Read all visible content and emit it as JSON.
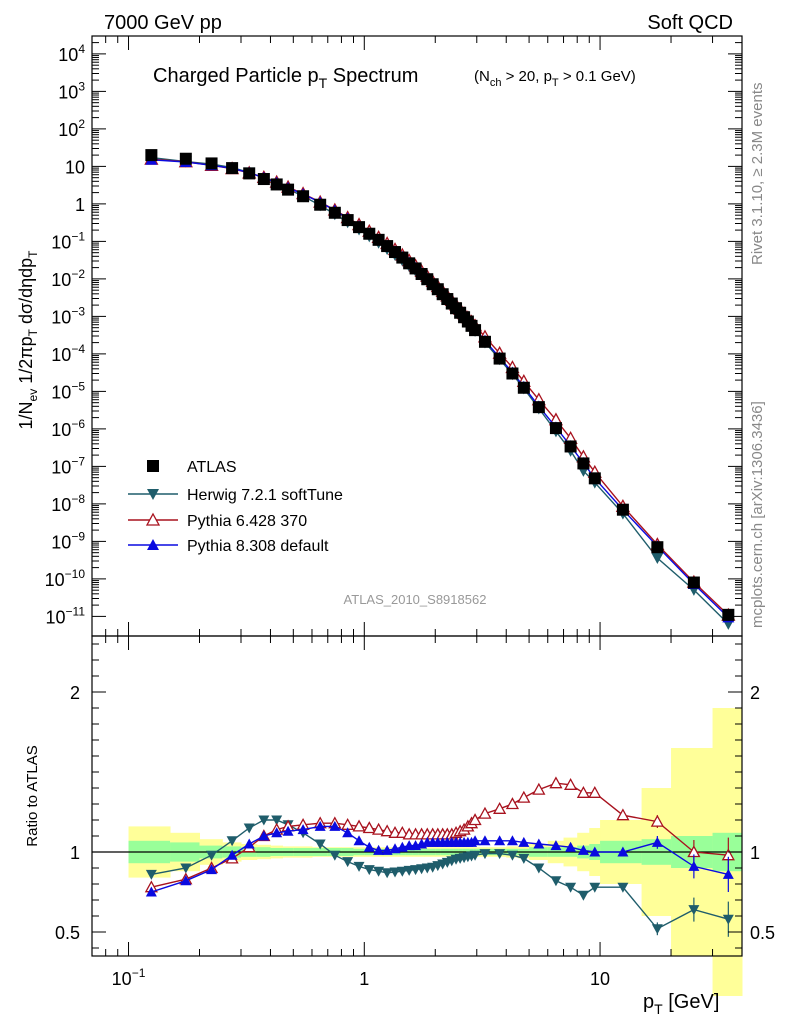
{
  "header": {
    "beam": "7000 GeV pp",
    "process": "Soft QCD",
    "analysis": "ATLAS_2010_S8918562",
    "side_top": "Rivet 3.1.10, ≥ 2.3M events",
    "side_bottom": "mcplots.cern.ch [arXiv:1306.3436]"
  },
  "chart_data": [
    {
      "type": "line",
      "title": "Charged Particle pT Spectrum",
      "subtitle": "(Nch > 20, pT > 0.1 GeV)",
      "ylabel": "1/Nev 1/2πpT dσ/dηdpT",
      "xlabel": "pT [GeV]",
      "xscale": "log",
      "yscale": "log",
      "xlim": [
        0.07,
        40
      ],
      "ylim": [
        3e-12,
        30000.0
      ],
      "legend_position": "bottom-left",
      "x": [
        0.125,
        0.175,
        0.225,
        0.275,
        0.325,
        0.375,
        0.425,
        0.475,
        0.55,
        0.65,
        0.75,
        0.85,
        0.95,
        1.05,
        1.15,
        1.25,
        1.35,
        1.45,
        1.55,
        1.65,
        1.75,
        1.85,
        1.95,
        2.05,
        2.15,
        2.25,
        2.35,
        2.45,
        2.55,
        2.65,
        2.75,
        2.85,
        2.95,
        3.25,
        3.75,
        4.25,
        4.75,
        5.5,
        6.5,
        7.5,
        8.5,
        9.5,
        12.5,
        17.5,
        25.0,
        35.0
      ],
      "series": [
        {
          "name": "ATLAS",
          "color": "#000000",
          "marker": "square",
          "values": [
            20,
            16,
            12,
            9,
            6.5,
            4.6,
            3.3,
            2.4,
            1.6,
            0.95,
            0.58,
            0.37,
            0.24,
            0.16,
            0.11,
            0.075,
            0.052,
            0.037,
            0.026,
            0.019,
            0.0135,
            0.0098,
            0.0072,
            0.0053,
            0.0039,
            0.0029,
            0.0022,
            0.00165,
            0.00125,
            0.00095,
            0.00073,
            0.00056,
            0.00043,
            0.00021,
            7.5e-05,
            3e-05,
            1.25e-05,
            3.8e-06,
            1.05e-06,
            3.4e-07,
            1.2e-07,
            4.8e-08,
            7e-09,
            7e-10,
            8e-11,
            1.1e-11
          ]
        },
        {
          "name": "Herwig 7.2.1 softTune",
          "color": "#1f5d6b",
          "marker": "triangle-down",
          "values": [
            17.2,
            13.4,
            11.5,
            9.3,
            6.9,
            4.9,
            3.5,
            2.5,
            1.6,
            0.92,
            0.53,
            0.325,
            0.207,
            0.136,
            0.092,
            0.062,
            0.0432,
            0.0308,
            0.0218,
            0.0161,
            0.0116,
            0.0085,
            0.0063,
            0.0047,
            0.00348,
            0.00261,
            0.00199,
            0.00151,
            0.00116,
            0.00089,
            0.00069,
            0.00053,
            0.000411,
            0.000202,
            7.2e-05,
            2.87e-05,
            1.2e-05,
            3.5e-06,
            8.6e-07,
            2.6e-07,
            7.6e-08,
            3.7e-08,
            5.5e-09,
            3.6e-10,
            5.1e-11,
            6.3e-12
          ]
        },
        {
          "name": "Pythia 6.428 370",
          "color": "#a8121e",
          "marker": "triangle-open",
          "values": [
            15.6,
            13.3,
            10.7,
            8.7,
            6.7,
            5.1,
            3.8,
            2.8,
            1.88,
            1.12,
            0.69,
            0.43,
            0.28,
            0.187,
            0.128,
            0.088,
            0.061,
            0.0435,
            0.0308,
            0.0225,
            0.016,
            0.0117,
            0.0086,
            0.0063,
            0.0047,
            0.0035,
            0.00267,
            0.00203,
            0.00155,
            0.00119,
            0.00093,
            0.00072,
            0.000563,
            0.000285,
            0.000104,
            4.35e-05,
            1.85e-05,
            6e-06,
            1.75e-06,
            5.6e-07,
            1.8e-07,
            7e-08,
            8.6e-09,
            8.3e-10,
            8.2e-11,
            1.08e-11
          ]
        },
        {
          "name": "Pythia 8.308 default",
          "color": "#0a0ae0",
          "marker": "triangle",
          "values": [
            15,
            13.1,
            10.7,
            8.9,
            6.8,
            5.0,
            3.7,
            2.7,
            1.82,
            1.1,
            0.67,
            0.41,
            0.255,
            0.164,
            0.111,
            0.077,
            0.054,
            0.0385,
            0.0273,
            0.0198,
            0.0142,
            0.0104,
            0.0076,
            0.0056,
            0.00412,
            0.00306,
            0.00233,
            0.00175,
            0.00133,
            0.00101,
            0.00078,
            0.0006,
            0.00046,
            0.000225,
            8e-05,
            3.2e-05,
            1.33e-05,
            4e-06,
            1.1e-06,
            3.5e-07,
            1.23e-07,
            4.8e-08,
            7e-09,
            7.4e-10,
            7.3e-11,
            9.4e-12
          ]
        }
      ]
    },
    {
      "type": "line",
      "ylabel": "Ratio to ATLAS",
      "xscale": "log",
      "xlim": [
        0.07,
        40
      ],
      "ylim": [
        0.35,
        2.35
      ],
      "band_x_edges": [
        0.1,
        0.15,
        0.2,
        0.25,
        0.3,
        0.35,
        0.4,
        0.45,
        0.5,
        0.6,
        0.7,
        0.8,
        0.9,
        1,
        1.1,
        1.2,
        1.3,
        1.4,
        1.5,
        1.6,
        1.7,
        1.8,
        1.9,
        2,
        2.1,
        2.2,
        2.3,
        2.4,
        2.5,
        2.6,
        2.7,
        2.8,
        2.9,
        3,
        3.5,
        4,
        4.5,
        5,
        6,
        7,
        8,
        9,
        10,
        15,
        20,
        30,
        40
      ],
      "band_stat_halfwidth": [
        0.07,
        0.06,
        0.04,
        0.035,
        0.03,
        0.03,
        0.025,
        0.025,
        0.025,
        0.025,
        0.025,
        0.025,
        0.02,
        0.02,
        0.02,
        0.02,
        0.02,
        0.02,
        0.02,
        0.02,
        0.02,
        0.02,
        0.02,
        0.02,
        0.02,
        0.02,
        0.02,
        0.02,
        0.02,
        0.02,
        0.02,
        0.02,
        0.02,
        0.02,
        0.02,
        0.02,
        0.02,
        0.03,
        0.03,
        0.03,
        0.04,
        0.05,
        0.07,
        0.08,
        0.1,
        0.12
      ],
      "band_total_halfwidth": [
        0.16,
        0.12,
        0.08,
        0.06,
        0.05,
        0.045,
        0.04,
        0.035,
        0.035,
        0.03,
        0.03,
        0.03,
        0.03,
        0.03,
        0.03,
        0.03,
        0.03,
        0.03,
        0.03,
        0.03,
        0.03,
        0.03,
        0.03,
        0.03,
        0.03,
        0.03,
        0.03,
        0.03,
        0.03,
        0.03,
        0.03,
        0.03,
        0.03,
        0.03,
        0.03,
        0.035,
        0.04,
        0.05,
        0.07,
        0.09,
        0.12,
        0.15,
        0.2,
        0.4,
        0.65,
        0.9
      ],
      "series": [
        {
          "name": "Herwig 7.2.1 softTune",
          "color": "#1f5d6b",
          "values": [
            0.86,
            0.9,
            0.98,
            1.07,
            1.15,
            1.2,
            1.2,
            1.17,
            1.12,
            1.05,
            0.98,
            0.94,
            0.91,
            0.89,
            0.88,
            0.87,
            0.875,
            0.88,
            0.885,
            0.89,
            0.895,
            0.9,
            0.905,
            0.915,
            0.925,
            0.935,
            0.945,
            0.955,
            0.96,
            0.965,
            0.97,
            0.975,
            0.98,
            0.99,
            0.99,
            0.98,
            0.96,
            0.9,
            0.82,
            0.78,
            0.73,
            0.78,
            0.78,
            0.52,
            0.64,
            0.58
          ]
        },
        {
          "name": "Pythia 6.428 370",
          "color": "#a8121e",
          "values": [
            0.78,
            0.83,
            0.9,
            0.96,
            1.03,
            1.1,
            1.14,
            1.16,
            1.17,
            1.18,
            1.18,
            1.17,
            1.16,
            1.15,
            1.14,
            1.13,
            1.12,
            1.12,
            1.11,
            1.11,
            1.11,
            1.11,
            1.11,
            1.11,
            1.11,
            1.11,
            1.11,
            1.12,
            1.13,
            1.14,
            1.16,
            1.18,
            1.2,
            1.24,
            1.27,
            1.3,
            1.34,
            1.39,
            1.43,
            1.42,
            1.37,
            1.37,
            1.23,
            1.19,
            1.0,
            0.98
          ]
        },
        {
          "name": "Pythia 8.308 default",
          "color": "#0a0ae0",
          "values": [
            0.75,
            0.82,
            0.89,
            0.98,
            1.05,
            1.1,
            1.12,
            1.13,
            1.14,
            1.16,
            1.16,
            1.12,
            1.07,
            1.03,
            1.01,
            1.01,
            1.02,
            1.03,
            1.04,
            1.04,
            1.05,
            1.06,
            1.06,
            1.06,
            1.06,
            1.06,
            1.06,
            1.06,
            1.06,
            1.06,
            1.06,
            1.06,
            1.07,
            1.07,
            1.07,
            1.07,
            1.06,
            1.05,
            1.04,
            1.03,
            1.01,
            1.0,
            1.0,
            1.06,
            0.91,
            0.86
          ]
        }
      ]
    }
  ]
}
